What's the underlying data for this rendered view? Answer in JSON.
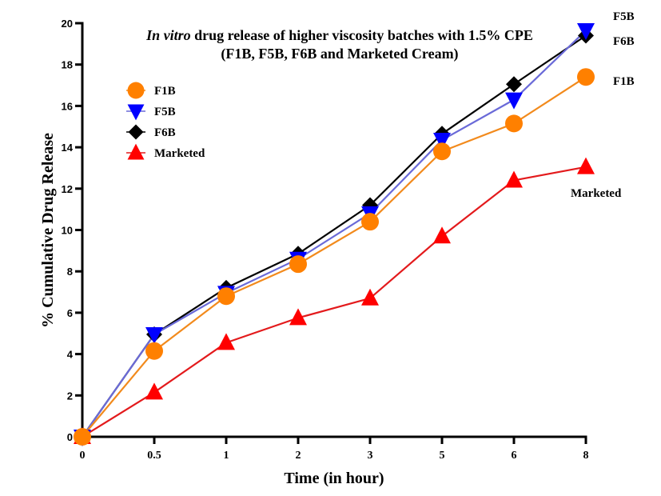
{
  "chart_data": {
    "type": "line",
    "title_line1_italic": "In vitro",
    "title_line1_rest": " drug release of higher viscosity batches with 1.5% CPE",
    "title_line2": "(F1B, F5B, F6B and Marketed Cream)",
    "xlabel": "Time (in hour)",
    "ylabel": "% Cumulative Drug Release",
    "categories": [
      "0",
      "0.5",
      "1",
      "2",
      "3",
      "5",
      "6",
      "8"
    ],
    "ylim": [
      0,
      20
    ],
    "yticks": [
      0,
      2,
      4,
      6,
      8,
      10,
      12,
      14,
      16,
      18,
      20
    ],
    "grid": false,
    "legend_position": "top-left",
    "series": [
      {
        "name": "Marketed",
        "marker": "triangle-up",
        "line_color": "#e31a1c",
        "marker_color": "#ff0000",
        "values": [
          0,
          2.15,
          4.55,
          5.75,
          6.7,
          9.7,
          12.4,
          13.05
        ]
      },
      {
        "name": "F6B",
        "marker": "diamond",
        "line_color": "#000000",
        "marker_color": "#000000",
        "values": [
          0,
          4.95,
          7.2,
          8.85,
          11.2,
          14.65,
          17.05,
          19.4
        ]
      },
      {
        "name": "F5B",
        "marker": "triangle-down",
        "line_color": "#6a6ad8",
        "marker_color": "#0000ff",
        "values": [
          0,
          4.95,
          6.95,
          8.6,
          10.8,
          14.35,
          16.3,
          19.65
        ]
      },
      {
        "name": "F1B",
        "marker": "circle",
        "line_color": "#f28a1c",
        "marker_color": "#ff8000",
        "values": [
          0,
          4.15,
          6.8,
          8.35,
          10.4,
          13.8,
          15.15,
          17.4
        ]
      }
    ],
    "legend_order": [
      "F1B",
      "F5B",
      "F6B",
      "Marketed"
    ],
    "end_labels": [
      "F5B",
      "F6B",
      "F1B",
      "Marketed"
    ]
  }
}
